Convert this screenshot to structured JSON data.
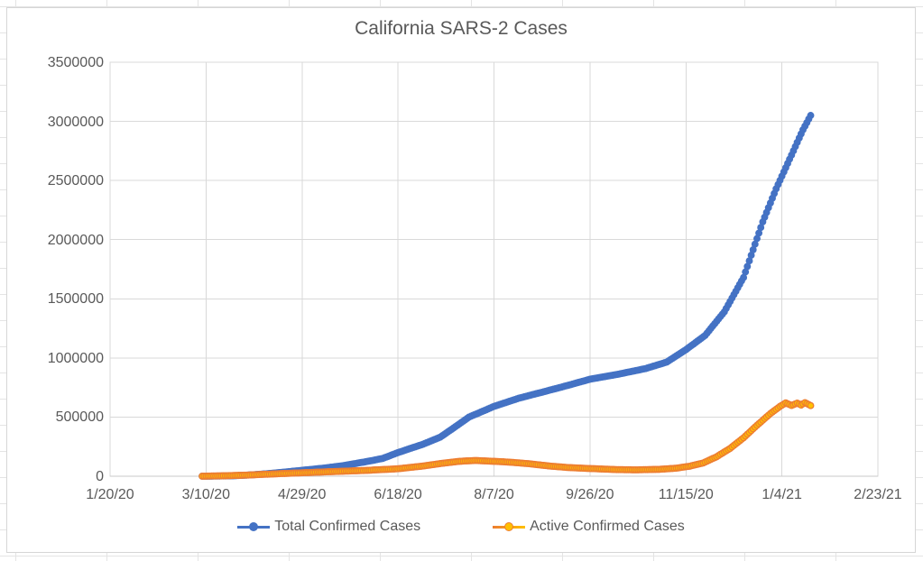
{
  "title": "California SARS-2 Cases",
  "legend": {
    "position": "bottom",
    "items": [
      {
        "label": "Total Confirmed Cases",
        "line_color": "#4472C4",
        "dot_fill": "#4472C4",
        "dot_border": "#4472C4"
      },
      {
        "label": "Active Confirmed Cases",
        "line_color": "#FFC000",
        "dot_fill": "#FFC000",
        "dot_border": "#ED7D31"
      }
    ]
  },
  "chart_data": {
    "type": "line",
    "title": "California SARS-2 Cases",
    "xlabel": "",
    "ylabel": "",
    "grid": true,
    "legend_position": "bottom",
    "x_axis": {
      "start_date": "2020-01-20",
      "end_date": "2021-02-23",
      "tick_interval_days": 50,
      "tick_labels": [
        "1/20/20",
        "3/10/20",
        "4/29/20",
        "6/18/20",
        "8/7/20",
        "9/26/20",
        "11/15/20",
        "1/4/21",
        "2/23/21"
      ]
    },
    "y_axis": {
      "min": 0,
      "max": 3500000,
      "tick_interval": 500000,
      "tick_labels_top_to_bottom": [
        "3500000",
        "3000000",
        "2500000",
        "2000000",
        "1500000",
        "1000000",
        "500000",
        "0"
      ]
    },
    "series": [
      {
        "name": "Total Confirmed Cases",
        "line_color": "#4472C4",
        "marker_fill": "#4472C4",
        "marker_border": "#4472C4",
        "points": [
          [
            "2020-03-08",
            500
          ],
          [
            "2020-03-16",
            1500
          ],
          [
            "2020-03-24",
            3500
          ],
          [
            "2020-04-01",
            10000
          ],
          [
            "2020-04-10",
            20000
          ],
          [
            "2020-04-20",
            35000
          ],
          [
            "2020-04-29",
            50000
          ],
          [
            "2020-05-10",
            68000
          ],
          [
            "2020-05-20",
            88000
          ],
          [
            "2020-06-01",
            122000
          ],
          [
            "2020-06-10",
            150000
          ],
          [
            "2020-06-18",
            200000
          ],
          [
            "2020-07-01",
            270000
          ],
          [
            "2020-07-10",
            330000
          ],
          [
            "2020-07-18",
            420000
          ],
          [
            "2020-07-25",
            500000
          ],
          [
            "2020-08-07",
            590000
          ],
          [
            "2020-08-20",
            660000
          ],
          [
            "2020-09-01",
            710000
          ],
          [
            "2020-09-15",
            770000
          ],
          [
            "2020-09-26",
            820000
          ],
          [
            "2020-10-10",
            860000
          ],
          [
            "2020-10-25",
            910000
          ],
          [
            "2020-11-05",
            965000
          ],
          [
            "2020-11-15",
            1070000
          ],
          [
            "2020-11-25",
            1190000
          ],
          [
            "2020-12-05",
            1390000
          ],
          [
            "2020-12-15",
            1680000
          ],
          [
            "2020-12-25",
            2150000
          ],
          [
            "2021-01-01",
            2430000
          ],
          [
            "2021-01-08",
            2680000
          ],
          [
            "2021-01-15",
            2930000
          ],
          [
            "2021-01-19",
            3050000
          ]
        ]
      },
      {
        "name": "Active Confirmed Cases",
        "line_color": "#ED7D31",
        "marker_fill": "#FFC000",
        "marker_border": "#ED7D31",
        "points": [
          [
            "2020-03-08",
            500
          ],
          [
            "2020-03-20",
            4000
          ],
          [
            "2020-04-01",
            10000
          ],
          [
            "2020-04-15",
            20000
          ],
          [
            "2020-04-29",
            29000
          ],
          [
            "2020-05-15",
            39000
          ],
          [
            "2020-06-01",
            49000
          ],
          [
            "2020-06-18",
            63000
          ],
          [
            "2020-07-01",
            86000
          ],
          [
            "2020-07-10",
            107000
          ],
          [
            "2020-07-20",
            126000
          ],
          [
            "2020-07-28",
            133000
          ],
          [
            "2020-08-07",
            126000
          ],
          [
            "2020-08-15",
            119000
          ],
          [
            "2020-08-25",
            106000
          ],
          [
            "2020-09-05",
            86000
          ],
          [
            "2020-09-15",
            73000
          ],
          [
            "2020-09-26",
            65000
          ],
          [
            "2020-10-10",
            56000
          ],
          [
            "2020-10-20",
            54000
          ],
          [
            "2020-11-01",
            58000
          ],
          [
            "2020-11-10",
            68000
          ],
          [
            "2020-11-17",
            85000
          ],
          [
            "2020-11-24",
            112000
          ],
          [
            "2020-12-01",
            165000
          ],
          [
            "2020-12-08",
            235000
          ],
          [
            "2020-12-15",
            325000
          ],
          [
            "2020-12-22",
            430000
          ],
          [
            "2020-12-29",
            530000
          ],
          [
            "2021-01-03",
            590000
          ],
          [
            "2021-01-06",
            620000
          ],
          [
            "2021-01-09",
            598000
          ],
          [
            "2021-01-12",
            618000
          ],
          [
            "2021-01-14",
            602000
          ],
          [
            "2021-01-16",
            622000
          ],
          [
            "2021-01-19",
            597000
          ]
        ]
      }
    ]
  },
  "colors": {
    "text": "#595959",
    "gridline": "#D9D9D9",
    "axis_line": "#C8C8C8",
    "worksheet_gridline": "#E4E4E4",
    "chart_border": "#D6D6D6"
  }
}
